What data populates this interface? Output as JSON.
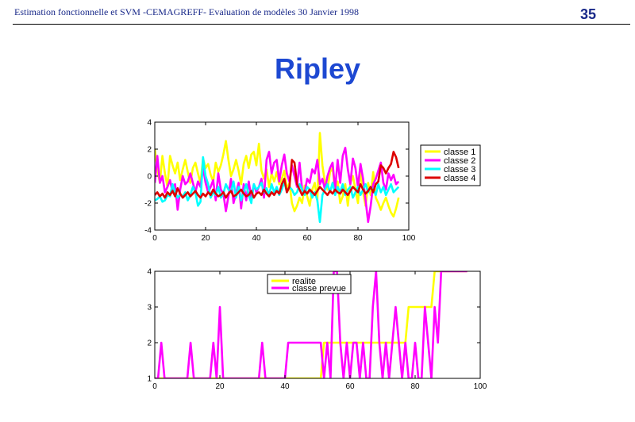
{
  "header": {
    "text": "Estimation fonctionnelle  et SVM -CEMAGREFF- Evaluation de modèles 30 Janvier 1998",
    "page_number": "35"
  },
  "slide_title": "Ripley",
  "chart_data": [
    {
      "type": "line",
      "xlim": [
        0,
        100
      ],
      "ylim": [
        -4,
        4
      ],
      "xticks": [
        0,
        20,
        40,
        60,
        80,
        100
      ],
      "yticks": [
        4,
        2,
        0,
        -2,
        -4
      ],
      "legend_position": "right-outside",
      "series": [
        {
          "name": "classe 1",
          "color": "#ffff00",
          "values": [
            2.0,
            0.5,
            -0.5,
            1.5,
            0.2,
            -0.8,
            1.5,
            0.8,
            0.2,
            1.0,
            -0.3,
            0.5,
            1.2,
            0.3,
            -0.5,
            0.6,
            1.0,
            0.2,
            -0.5,
            1.3,
            0.6,
            0.9,
            0.1,
            -0.4,
            1.0,
            0.3,
            0.8,
            1.6,
            2.6,
            1.2,
            0.0,
            0.5,
            1.2,
            0.4,
            -0.6,
            0.9,
            1.5,
            0.6,
            1.6,
            1.8,
            0.8,
            2.4,
            0.4,
            -0.2,
            0.5,
            -0.8,
            0.2,
            -0.4,
            0.3,
            -0.6,
            -0.2,
            0.4,
            -1.0,
            -0.5,
            -2.0,
            -2.6,
            -2.2,
            -1.6,
            -2.0,
            -0.7,
            -1.5,
            -2.2,
            -1.0,
            -0.5,
            -1.8,
            3.2,
            0.8,
            -0.5,
            -1.0,
            0.3,
            0.6,
            -1.2,
            -0.4,
            -2.0,
            -1.5,
            -0.6,
            -2.2,
            -0.5,
            0.0,
            -1.0,
            -2.0,
            0.5,
            -1.2,
            -2.2,
            -0.5,
            -1.4,
            0.3,
            -1.6,
            -2.0,
            -2.5,
            -2.0,
            -1.6,
            -2.2,
            -2.7,
            -3.0,
            -2.4,
            -1.6
          ]
        },
        {
          "name": "classe 2",
          "color": "#ff00ff",
          "values": [
            -0.5,
            1.5,
            -0.5,
            0.0,
            -1.2,
            -0.8,
            -0.3,
            -1.2,
            -0.6,
            -2.5,
            -1.0,
            0.0,
            -0.6,
            -0.4,
            0.2,
            -0.5,
            -1.2,
            -0.4,
            -0.8,
            0.6,
            -0.5,
            -1.2,
            -0.8,
            -0.3,
            -1.8,
            0.2,
            -1.0,
            -1.3,
            -2.6,
            -1.5,
            -0.2,
            -2.0,
            -1.3,
            -0.5,
            -2.4,
            -0.6,
            -1.8,
            -0.4,
            -1.6,
            -0.6,
            -1.2,
            -0.8,
            -0.2,
            -1.6,
            1.2,
            1.8,
            0.2,
            1.0,
            1.2,
            -0.4,
            0.8,
            1.6,
            0.2,
            -0.4,
            0.8,
            0.0,
            -0.8,
            1.0,
            -1.0,
            -1.2,
            -0.2,
            -0.5,
            0.5,
            0.2,
            1.2,
            -0.6,
            -0.2,
            -1.0,
            0.0,
            0.6,
            1.0,
            -1.0,
            1.2,
            -0.5,
            1.5,
            2.1,
            0.5,
            -0.6,
            1.3,
            0.6,
            -0.8,
            0.9,
            -0.2,
            -1.8,
            -3.4,
            -2.2,
            -0.6,
            -0.2,
            0.4,
            1.0,
            -0.5,
            -1.0,
            0.2,
            -0.3,
            0.1,
            -0.6,
            -0.4
          ]
        },
        {
          "name": "classe 3",
          "color": "#00ffff",
          "values": [
            -1.8,
            -1.7,
            -1.5,
            -1.9,
            -1.8,
            -1.4,
            -1.5,
            -0.6,
            -1.2,
            -1.6,
            -1.4,
            -1.5,
            -1.2,
            -1.8,
            -1.4,
            -0.8,
            -1.2,
            -2.2,
            -1.9,
            1.4,
            0.0,
            -0.6,
            -1.6,
            -1.2,
            -1.4,
            -0.8,
            -1.6,
            -1.3,
            -0.6,
            -1.0,
            -1.2,
            -0.4,
            -1.6,
            -0.8,
            -1.8,
            -1.2,
            -0.6,
            -1.4,
            -2.0,
            -0.6,
            -1.0,
            -0.8,
            -0.5,
            -1.2,
            -0.9,
            -1.4,
            -0.6,
            -1.2,
            -0.8,
            -1.4,
            -1.0,
            -0.4,
            -1.2,
            -0.8,
            -1.0,
            -1.4,
            -1.2,
            -0.6,
            -1.0,
            -1.4,
            -0.8,
            -1.0,
            -1.6,
            -1.2,
            -1.8,
            -3.4,
            -1.4,
            -1.0,
            -0.6,
            -1.2,
            -0.5,
            -1.4,
            -0.8,
            -1.2,
            -0.6,
            -1.4,
            -1.0,
            -0.8,
            -1.6,
            -1.2,
            -0.8,
            -1.4,
            -1.0,
            -0.6,
            -1.2,
            -0.8,
            -1.0,
            -1.4,
            -0.6,
            -1.2,
            -0.8,
            -1.4,
            -1.0,
            -0.6,
            -1.2,
            -1.0,
            -0.8
          ]
        },
        {
          "name": "classe 4",
          "color": "#dd0000",
          "values": [
            -1.4,
            -1.2,
            -1.5,
            -1.3,
            -1.6,
            -1.2,
            -1.4,
            -1.1,
            -1.5,
            -0.9,
            -1.3,
            -1.6,
            -1.4,
            -1.2,
            -1.5,
            -1.3,
            -1.1,
            -1.4,
            -1.6,
            -1.3,
            -1.5,
            -1.2,
            -1.4,
            -1.0,
            -1.3,
            -1.5,
            -1.4,
            -1.2,
            -1.6,
            -1.3,
            -1.1,
            -1.5,
            -1.4,
            -1.2,
            -1.0,
            -1.3,
            -1.5,
            -1.4,
            -1.1,
            -1.6,
            -1.3,
            -1.2,
            -1.4,
            -1.0,
            -1.3,
            -1.5,
            -1.2,
            -1.4,
            -1.1,
            -1.3,
            -0.6,
            -0.2,
            -1.2,
            -0.8,
            1.2,
            1.0,
            -0.6,
            -1.0,
            -1.4,
            -1.1,
            -1.3,
            -1.0,
            -1.2,
            -1.4,
            -1.1,
            -0.8,
            -1.0,
            -1.2,
            -1.4,
            -1.1,
            -1.3,
            -1.0,
            -1.2,
            -1.3,
            -1.0,
            -1.2,
            -1.4,
            -1.1,
            -0.8,
            -1.0,
            -1.2,
            -0.6,
            -1.0,
            -1.3,
            -1.1,
            -0.8,
            -1.2,
            -0.6,
            -0.4,
            0.8,
            0.6,
            0.2,
            0.6,
            0.9,
            1.8,
            1.4,
            0.6
          ]
        }
      ]
    },
    {
      "type": "line",
      "xlim": [
        0,
        100
      ],
      "ylim": [
        1,
        4
      ],
      "xticks": [
        0,
        20,
        40,
        60,
        80,
        100
      ],
      "yticks": [
        4,
        3,
        2,
        1
      ],
      "legend_position": "top-center",
      "series": [
        {
          "name": "realite",
          "color": "#ffff00",
          "x": [
            0,
            51,
            52,
            77,
            78,
            85,
            86,
            87,
            96
          ],
          "values": [
            1,
            1,
            2,
            2,
            3,
            3,
            4,
            4,
            4
          ]
        },
        {
          "name": "classe prevue",
          "color": "#ff00ff",
          "x": [
            0,
            1,
            2,
            3,
            10,
            11,
            12,
            17,
            18,
            19,
            20,
            21,
            32,
            33,
            34,
            40,
            41,
            51,
            52,
            53,
            54,
            55,
            56,
            57,
            58,
            59,
            60,
            61,
            62,
            63,
            64,
            65,
            66,
            67,
            68,
            69,
            70,
            71,
            72,
            73,
            74,
            75,
            76,
            77,
            78,
            79,
            80,
            81,
            82,
            83,
            84,
            85,
            86,
            87,
            88,
            96
          ],
          "values": [
            1,
            1,
            2,
            1,
            1,
            2,
            1,
            1,
            2,
            1,
            3,
            1,
            1,
            2,
            1,
            1,
            2,
            2,
            1,
            2,
            1,
            4,
            4,
            2,
            1,
            2,
            1,
            2,
            2,
            1,
            2,
            1,
            1,
            3,
            4,
            2,
            1,
            2,
            1,
            2,
            3,
            2,
            1,
            2,
            1,
            1,
            2,
            1,
            1,
            3,
            2,
            1,
            3,
            2,
            4,
            4
          ]
        }
      ]
    }
  ]
}
